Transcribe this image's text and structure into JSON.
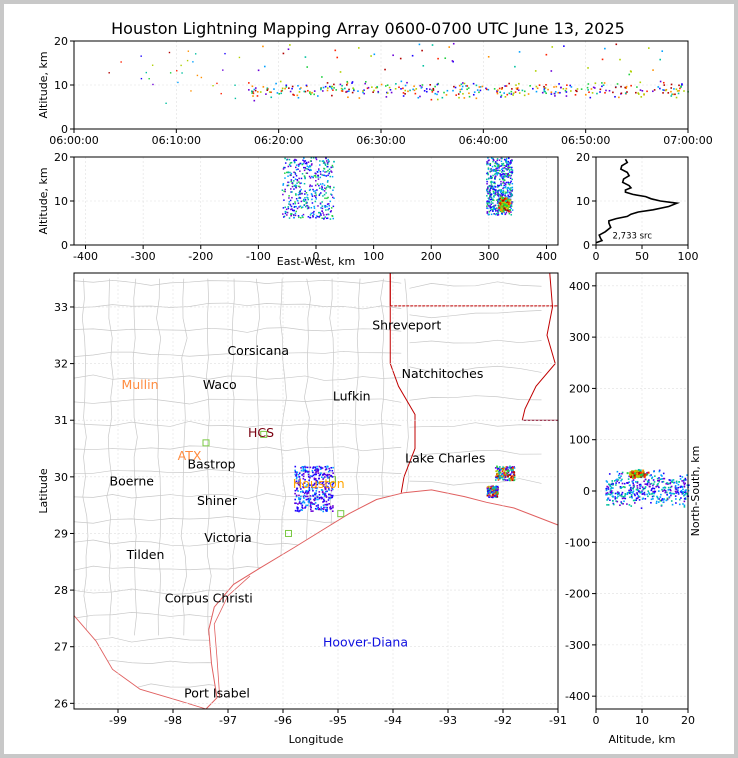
{
  "title": "Houston Lightning Mapping Array 0600-0700 UTC June 13, 2025",
  "colors": {
    "county_lines": "#c8c8c8",
    "state_lines": "#c00000",
    "coast": "#e06060",
    "grid": "#e0e0e0",
    "source_colormap": [
      "#1a00ff",
      "#6a00d8",
      "#00a0ff",
      "#00c0a0",
      "#20d040",
      "#b0d000",
      "#ff9000",
      "#ff2000",
      "#b00000"
    ]
  },
  "chart_data": [
    {
      "id": "time_height",
      "type": "scatter",
      "xlabel": "",
      "ylabel": "Altitude, km",
      "x_ticks": [
        "06:00:00",
        "06:10:00",
        "06:20:00",
        "06:30:00",
        "06:40:00",
        "06:50:00",
        "07:00:00"
      ],
      "x_range_minutes": [
        0,
        60
      ],
      "ylim": [
        0,
        20
      ],
      "y_ticks": [
        0,
        10,
        20
      ],
      "clusters_minutes_alt": [
        {
          "t_min": 17,
          "t_max": 60,
          "alt_min": 6,
          "alt_max": 12,
          "note_alt_sparse_to": 20
        }
      ]
    },
    {
      "id": "east_west_height",
      "type": "scatter",
      "xlabel": "East-West, km",
      "ylabel": "Altitude, km",
      "xlim": [
        -420,
        420
      ],
      "x_ticks": [
        -400,
        -300,
        -200,
        -100,
        0,
        100,
        200,
        300,
        400
      ],
      "ylim": [
        0,
        20
      ],
      "y_ticks": [
        0,
        10,
        20
      ],
      "clusters": [
        {
          "x_min": -60,
          "x_max": 30,
          "alt_min": 6,
          "alt_max": 20
        },
        {
          "x_min": 295,
          "x_max": 340,
          "alt_min": 7,
          "alt_max": 20
        }
      ]
    },
    {
      "id": "altitude_histogram",
      "type": "line",
      "xlabel": "",
      "ylabel": "",
      "xlim": [
        0,
        100
      ],
      "x_ticks": [
        0,
        50,
        100
      ],
      "ylim": [
        0,
        20
      ],
      "y_ticks": [
        0,
        10,
        20
      ],
      "annotation": "2,733 src",
      "profile": [
        {
          "count": 0,
          "alt": 0.5
        },
        {
          "count": 5,
          "alt": 1.5
        },
        {
          "count": 10,
          "alt": 3.0
        },
        {
          "count": 14,
          "alt": 5.0
        },
        {
          "count": 22,
          "alt": 6.0
        },
        {
          "count": 38,
          "alt": 7.0
        },
        {
          "count": 62,
          "alt": 8.0
        },
        {
          "count": 88,
          "alt": 9.5
        },
        {
          "count": 60,
          "alt": 10.5
        },
        {
          "count": 40,
          "alt": 11.5
        },
        {
          "count": 32,
          "alt": 12.5
        },
        {
          "count": 36,
          "alt": 13.5
        },
        {
          "count": 30,
          "alt": 15.0
        },
        {
          "count": 34,
          "alt": 16.5
        },
        {
          "count": 28,
          "alt": 18.0
        },
        {
          "count": 32,
          "alt": 19.5
        }
      ]
    },
    {
      "id": "plan_view",
      "type": "scatter",
      "xlabel": "Longitude",
      "ylabel": "Latitude",
      "xlim": [
        -99.8,
        -91.0
      ],
      "ylim": [
        25.9,
        33.6
      ],
      "x_ticks": [
        -99,
        -98,
        -97,
        -96,
        -95,
        -94,
        -93,
        -92,
        -91
      ],
      "y_ticks": [
        26,
        27,
        28,
        29,
        30,
        31,
        32,
        33
      ],
      "cities": [
        {
          "name": "Shreveport",
          "lon": -93.75,
          "lat": 32.6,
          "color": "#000000"
        },
        {
          "name": "Corsicana",
          "lon": -96.45,
          "lat": 32.15,
          "color": "#000000"
        },
        {
          "name": "Natchitoches",
          "lon": -93.1,
          "lat": 31.75,
          "color": "#000000"
        },
        {
          "name": "Mullin",
          "lon": -98.6,
          "lat": 31.55,
          "color": "#ff8c40"
        },
        {
          "name": "Waco",
          "lon": -97.15,
          "lat": 31.55,
          "color": "#000000"
        },
        {
          "name": "Lufkin",
          "lon": -94.75,
          "lat": 31.35,
          "color": "#000000"
        },
        {
          "name": "HCS",
          "lon": -96.4,
          "lat": 30.7,
          "color": "#7a0010"
        },
        {
          "name": "ATX",
          "lon": -97.7,
          "lat": 30.3,
          "color": "#ff8c40"
        },
        {
          "name": "Bastrop",
          "lon": -97.3,
          "lat": 30.15,
          "color": "#000000"
        },
        {
          "name": "Lake Charles",
          "lon": -93.05,
          "lat": 30.25,
          "color": "#000000"
        },
        {
          "name": "Boerne",
          "lon": -98.75,
          "lat": 29.85,
          "color": "#000000"
        },
        {
          "name": "Houston",
          "lon": -95.35,
          "lat": 29.8,
          "color": "#ffa500"
        },
        {
          "name": "Shiner",
          "lon": -97.2,
          "lat": 29.5,
          "color": "#000000"
        },
        {
          "name": "Victoria",
          "lon": -97.0,
          "lat": 28.85,
          "color": "#000000"
        },
        {
          "name": "Tilden",
          "lon": -98.5,
          "lat": 28.55,
          "color": "#000000"
        },
        {
          "name": "Corpus Christi",
          "lon": -97.35,
          "lat": 27.78,
          "color": "#000000"
        },
        {
          "name": "Hoover-Diana",
          "lon": -94.5,
          "lat": 27.0,
          "color": "#1010e0"
        },
        {
          "name": "Port Isabel",
          "lon": -97.2,
          "lat": 26.1,
          "color": "#000000"
        }
      ],
      "clusters_lon_lat": [
        {
          "lon_min": -95.8,
          "lon_max": -95.1,
          "lat_min": 29.4,
          "lat_max": 30.2
        },
        {
          "lon_min": -92.15,
          "lon_max": -91.8,
          "lat_min": 29.95,
          "lat_max": 30.2
        },
        {
          "lon_min": -92.3,
          "lon_max": -92.1,
          "lat_min": 29.65,
          "lat_max": 29.85
        }
      ]
    },
    {
      "id": "north_south_height",
      "type": "scatter",
      "xlabel": "Altitude, km",
      "ylabel": "North-South, km",
      "xlim": [
        0,
        20
      ],
      "x_ticks": [
        0,
        10,
        20
      ],
      "ylim": [
        -425,
        425
      ],
      "y_ticks": [
        -400,
        -300,
        -200,
        -100,
        0,
        100,
        200,
        300,
        400
      ],
      "clusters": [
        {
          "alt_min": 2,
          "alt_max": 20,
          "y_min": -75,
          "y_max": 110,
          "core_y": 35
        }
      ]
    }
  ]
}
